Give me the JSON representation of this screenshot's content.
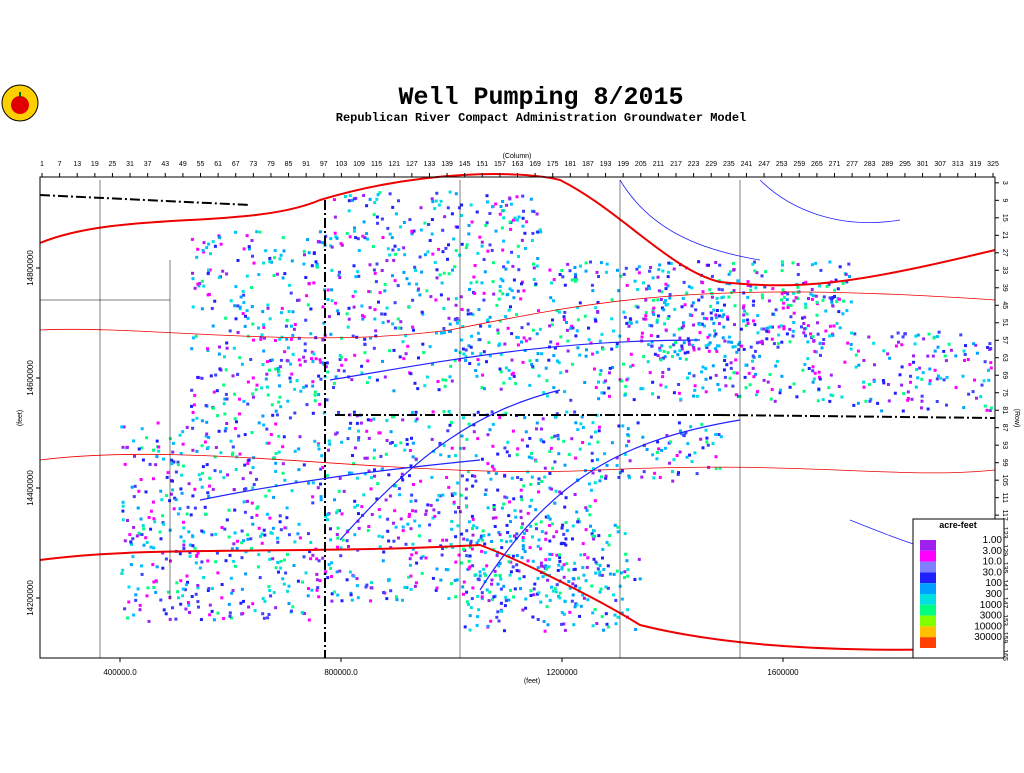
{
  "header": {
    "title": "Well Pumping 8/2015",
    "subtitle": "Republican River Compact Administration Groundwater Model"
  },
  "map": {
    "column_axis_label": "(Column)",
    "row_axis_label": "(Row)",
    "x_axis_label": "(feet)",
    "y_axis_label": "(feet)",
    "columns": [
      1,
      7,
      13,
      19,
      25,
      31,
      37,
      43,
      49,
      55,
      61,
      67,
      73,
      79,
      85,
      91,
      97,
      103,
      109,
      115,
      121,
      127,
      133,
      139,
      145,
      151,
      157,
      163,
      169,
      175,
      181,
      187,
      193,
      199,
      205,
      211,
      217,
      223,
      229,
      235,
      241,
      247,
      253,
      259,
      265,
      271,
      277,
      283,
      289,
      295,
      301,
      307,
      313,
      319,
      325
    ],
    "rows": [
      3,
      9,
      15,
      21,
      27,
      33,
      39,
      45,
      51,
      57,
      63,
      69,
      75,
      81,
      87,
      93,
      99,
      105,
      111,
      117,
      123,
      129,
      135,
      141,
      147,
      153,
      159,
      165
    ],
    "xticks": [
      {
        "value": 400000,
        "label": "400000.0"
      },
      {
        "value": 800000,
        "label": "800000.0"
      },
      {
        "value": 1200000,
        "label": "1200000"
      },
      {
        "value": 1600000,
        "label": "1600000"
      }
    ],
    "yticks": [
      14800000,
      14600000,
      14400000,
      14200000
    ]
  },
  "legend": {
    "title": "acre-feet",
    "labels": [
      "1.00",
      "3.00",
      "10.0",
      "30.0",
      "100",
      "300",
      "1000",
      "3000",
      "10000",
      "30000"
    ],
    "colors": [
      "#a020f0",
      "#ff00ff",
      "#8080ff",
      "#2020ff",
      "#00a0ff",
      "#00e0e0",
      "#00ff80",
      "#80ff00",
      "#ffc000",
      "#ff4000"
    ]
  }
}
